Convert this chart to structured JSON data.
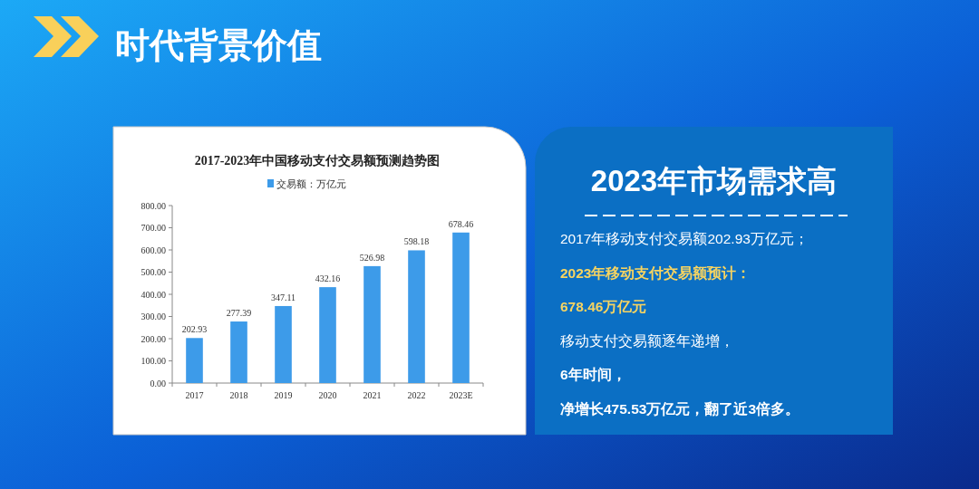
{
  "chart_data": [
    {
      "type": "other",
      "title": "时代背景价值"
    },
    {
      "type": "bar",
      "title": "2017-2023年中国移动支付交易额预测趋势图",
      "categories": [
        "2017",
        "2018",
        "2019",
        "2020",
        "2021",
        "2022",
        "2023E"
      ],
      "series": [
        {
          "name": "交易额：万亿元",
          "color": "#3d9be9",
          "values": [
            202.93,
            277.39,
            347.11,
            432.16,
            526.98,
            598.18,
            678.46
          ]
        }
      ],
      "ylim": [
        0,
        800
      ],
      "yticks": [
        {
          "value": 0,
          "label": "0.00"
        },
        {
          "value": 100,
          "label": "100.00"
        },
        {
          "value": 200,
          "label": "200.00"
        },
        {
          "value": 300,
          "label": "300.00"
        },
        {
          "value": 400,
          "label": "400.00"
        },
        {
          "value": 500,
          "label": "500.00"
        },
        {
          "value": 600,
          "label": "600.00"
        },
        {
          "value": 700,
          "label": "700.00"
        },
        {
          "value": 800,
          "label": "800.00"
        }
      ],
      "data_labels": true,
      "legend": "top"
    },
    {
      "type": "other",
      "title": "2023年市场需求高",
      "annotations": [
        "2017年移动支付交易额202.93万亿元；",
        "2023年移动支付交易额预计：",
        "678.46万亿元",
        "移动支付交易额逐年递增，",
        "6年时间，",
        "净增长475.53万亿元，翻了近3倍多。"
      ]
    }
  ]
}
